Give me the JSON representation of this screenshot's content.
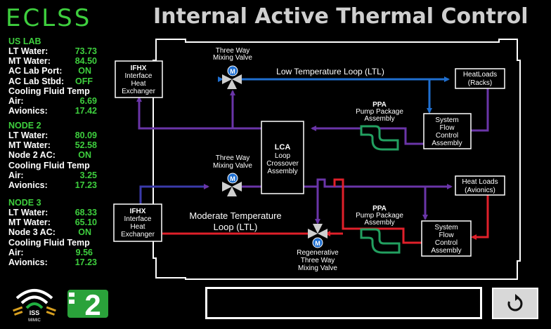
{
  "header": {
    "app_name": "ECLSS",
    "title": "Internal Active Thermal Control"
  },
  "sidebar": {
    "us_lab": {
      "title": "US LAB",
      "rows": [
        {
          "label": "LT Water:",
          "value": "73.73"
        },
        {
          "label": "MT Water:",
          "value": "84.50"
        },
        {
          "label": "AC Lab Port:",
          "value": "ON"
        },
        {
          "label": "AC Lab Stbd:",
          "value": "OFF"
        }
      ],
      "cooling_title": "Cooling Fluid Temp",
      "cooling": [
        {
          "label": "Air:",
          "value": "6.69"
        },
        {
          "label": "Avionics:",
          "value": "17.42"
        }
      ]
    },
    "node2": {
      "title": "NODE 2",
      "rows": [
        {
          "label": "LT Water:",
          "value": "80.09"
        },
        {
          "label": "MT Water:",
          "value": "52.58"
        },
        {
          "label": "Node 2 AC:",
          "value": "ON"
        }
      ],
      "cooling_title": "Cooling Fluid Temp",
      "cooling": [
        {
          "label": "Air:",
          "value": "3.25"
        },
        {
          "label": "Avionics:",
          "value": "17.23"
        }
      ]
    },
    "node3": {
      "title": "NODE 3",
      "rows": [
        {
          "label": "LT Water:",
          "value": "68.33"
        },
        {
          "label": "MT Water:",
          "value": "65.10"
        },
        {
          "label": "Node 3 AC:",
          "value": "ON"
        }
      ],
      "cooling_title": "Cooling Fluid Temp",
      "cooling": [
        {
          "label": "Air:",
          "value": "9.56"
        },
        {
          "label": "Avionics:",
          "value": "17.23"
        }
      ]
    }
  },
  "diagram": {
    "ifhx_top": {
      "l1": "IFHX",
      "l2": "Interface",
      "l3": "Heat",
      "l4": "Exchanger"
    },
    "ifhx_bottom": {
      "l1": "IFHX",
      "l2": "Interface",
      "l3": "Heat",
      "l4": "Exchanger"
    },
    "valve_top": {
      "l1": "Three Way",
      "l2": "Mixing Valve",
      "letter": "M"
    },
    "valve_mid": {
      "l1": "Three Way",
      "l2": "Mixing Valve",
      "letter": "M"
    },
    "valve_regen": {
      "l1": "Regenerative",
      "l2": "Three Way",
      "l3": "Mixing Valve",
      "letter": "M"
    },
    "ltl_label": "Low Temperature Loop (LTL)",
    "mtl_label_l1": "Moderate Temperature",
    "mtl_label_l2": "Loop (LTL)",
    "heatloads_racks": {
      "l1": "HeatLoads",
      "l2": "(Racks)"
    },
    "heatloads_avionics": {
      "l1": "Heat Loads",
      "l2": "(Avionics)"
    },
    "ppa_top": {
      "l1": "PPA",
      "l2": "Pump Package",
      "l3": "Assembly"
    },
    "ppa_bottom": {
      "l1": "PPA",
      "l2": "Pump Package",
      "l3": "Assembly"
    },
    "sfca_top": {
      "l1": "System",
      "l2": "Flow",
      "l3": "Control",
      "l4": "Assembly"
    },
    "sfca_bottom": {
      "l1": "System",
      "l2": "Flow",
      "l3": "Control",
      "l4": "Assembly"
    },
    "lca": {
      "l1": "LCA",
      "l2": "Loop",
      "l3": "Crossover",
      "l4": "Assembly"
    }
  },
  "footer": {
    "badge_text": "2",
    "iss_text": "ISS",
    "mimic_text": "MIMIC",
    "message": ""
  },
  "colors": {
    "blue": "#1f6fd0",
    "purple": "#6a35a8",
    "red": "#e0202a",
    "green": "#3ecf3e",
    "pump_green": "#22a060"
  }
}
